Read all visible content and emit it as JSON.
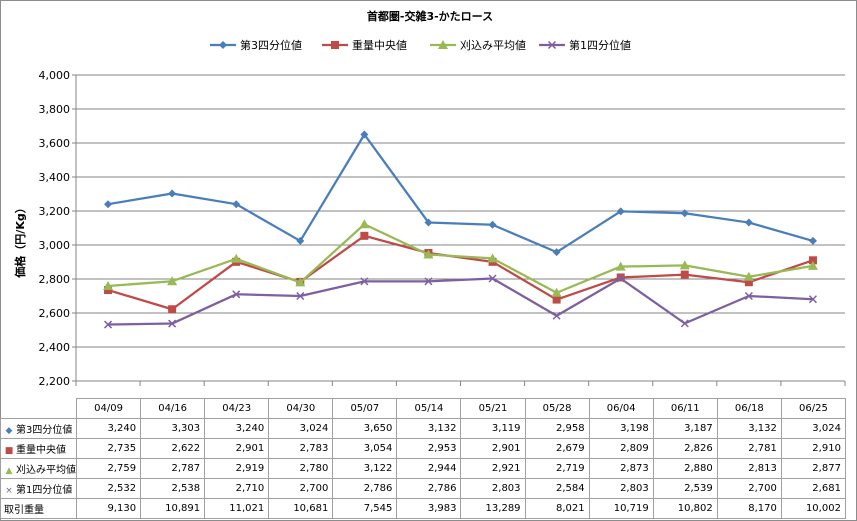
{
  "chart_data": {
    "type": "line",
    "title": "首都圏-交雑3-かたロース",
    "ylabel": "価格（円/Kg）",
    "xlabel": "",
    "ylim": [
      2200,
      4000
    ],
    "yticks": [
      2200,
      2400,
      2600,
      2800,
      3000,
      3200,
      3400,
      3600,
      3800,
      4000
    ],
    "ytick_labels": [
      "2,200",
      "2,400",
      "2,600",
      "2,800",
      "3,000",
      "3,200",
      "3,400",
      "3,600",
      "3,800",
      "4,000"
    ],
    "grid": true,
    "legend_position": "top",
    "categories": [
      "04/09",
      "04/16",
      "04/23",
      "04/30",
      "05/07",
      "05/14",
      "05/21",
      "05/28",
      "06/04",
      "06/11",
      "06/18",
      "06/25"
    ],
    "series": [
      {
        "name": "第3四分位値",
        "color": "#4a7ebb",
        "marker": "diamond",
        "values": [
          3240,
          3303,
          3240,
          3024,
          3650,
          3132,
          3119,
          2958,
          3198,
          3187,
          3132,
          3024
        ],
        "labels": [
          "3,240",
          "3,303",
          "3,240",
          "3,024",
          "3,650",
          "3,132",
          "3,119",
          "2,958",
          "3,198",
          "3,187",
          "3,132",
          "3,024"
        ]
      },
      {
        "name": "重量中央値",
        "color": "#be4b48",
        "marker": "square",
        "values": [
          2735,
          2622,
          2901,
          2783,
          3054,
          2953,
          2901,
          2679,
          2809,
          2826,
          2781,
          2910
        ],
        "labels": [
          "2,735",
          "2,622",
          "2,901",
          "2,783",
          "3,054",
          "2,953",
          "2,901",
          "2,679",
          "2,809",
          "2,826",
          "2,781",
          "2,910"
        ]
      },
      {
        "name": "刈込み平均値",
        "color": "#98b954",
        "marker": "triangle",
        "values": [
          2759,
          2787,
          2919,
          2780,
          3122,
          2944,
          2921,
          2719,
          2873,
          2880,
          2813,
          2877
        ],
        "labels": [
          "2,759",
          "2,787",
          "2,919",
          "2,780",
          "3,122",
          "2,944",
          "2,921",
          "2,719",
          "2,873",
          "2,880",
          "2,813",
          "2,877"
        ]
      },
      {
        "name": "第1四分位値",
        "color": "#7d60a0",
        "marker": "x",
        "values": [
          2532,
          2538,
          2710,
          2700,
          2786,
          2786,
          2803,
          2584,
          2803,
          2539,
          2700,
          2681
        ],
        "labels": [
          "2,532",
          "2,538",
          "2,710",
          "2,700",
          "2,786",
          "2,786",
          "2,803",
          "2,584",
          "2,803",
          "2,539",
          "2,700",
          "2,681"
        ]
      }
    ],
    "volume": {
      "name": "取引重量",
      "labels": [
        "9,130",
        "10,891",
        "11,021",
        "10,681",
        "7,545",
        "3,983",
        "13,289",
        "8,021",
        "10,719",
        "10,802",
        "8,170",
        "10,002"
      ]
    }
  }
}
